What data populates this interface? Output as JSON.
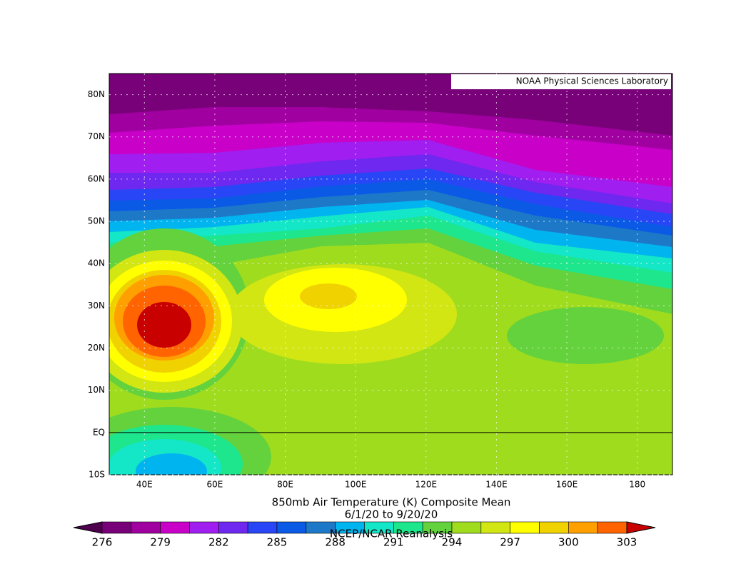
{
  "credit": "NOAA Physical Sciences Laboratory",
  "title": [
    "850mb Air Temperature (K) Composite Mean",
    "6/1/20  to 9/20/20",
    "NCEP/NCAR Reanalysis"
  ],
  "map": {
    "xlim": [
      30,
      190
    ],
    "ylim": [
      -10,
      85
    ],
    "lon_ticks": [
      {
        "value": 40,
        "label": "40E"
      },
      {
        "value": 60,
        "label": "60E"
      },
      {
        "value": 80,
        "label": "80E"
      },
      {
        "value": 100,
        "label": "100E"
      },
      {
        "value": 120,
        "label": "120E"
      },
      {
        "value": 140,
        "label": "140E"
      },
      {
        "value": 160,
        "label": "160E"
      },
      180
    ],
    "lat_ticks": [
      {
        "value": -10,
        "label": "10S"
      },
      {
        "value": 0,
        "label": "EQ"
      },
      {
        "value": 10,
        "label": "10N"
      },
      {
        "value": 20,
        "label": "20N"
      },
      {
        "value": 30,
        "label": "30N"
      },
      {
        "value": 40,
        "label": "40N"
      },
      {
        "value": 50,
        "label": "50N"
      },
      {
        "value": 60,
        "label": "60N"
      },
      {
        "value": 70,
        "label": "70N"
      },
      {
        "value": 80,
        "label": "80N"
      }
    ]
  },
  "colorbar": {
    "levels": [
      276,
      279,
      282,
      285,
      288,
      291,
      294,
      297,
      300,
      303
    ],
    "colors": [
      "#4e004e",
      "#780078",
      "#a000a0",
      "#c800c8",
      "#a01ef0",
      "#6e28f0",
      "#2846f5",
      "#0a5ae6",
      "#1e78c8",
      "#00b4f0",
      "#14e6c8",
      "#1ee68c",
      "#64d23c",
      "#a0dc1e",
      "#d2e614",
      "#ffff00",
      "#f0d200",
      "#ffa000",
      "#ff6400",
      "#c80000"
    ]
  }
}
